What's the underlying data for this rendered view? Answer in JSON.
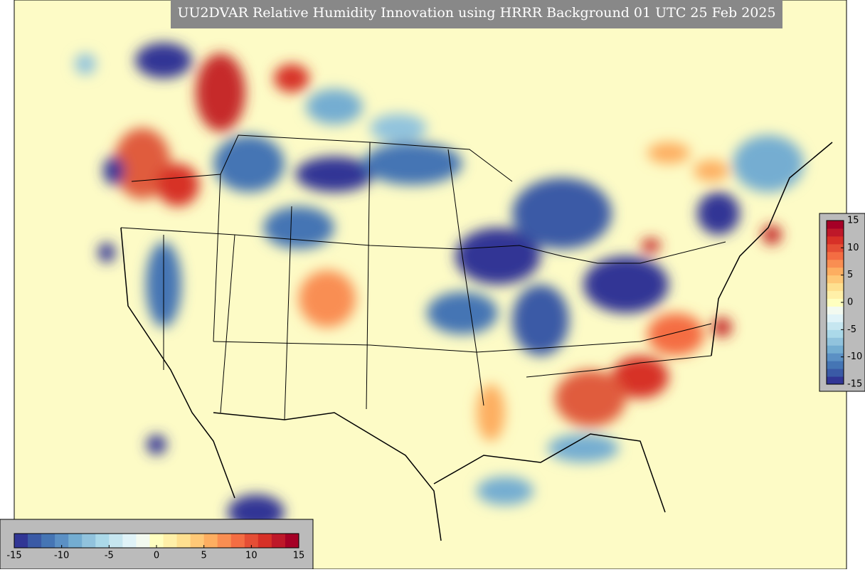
{
  "title": "UU2DVAR Relative Humidity Innovation using HRRR Background 01 UTC 25 Feb 2025",
  "colormap": {
    "lim": [
      -15,
      15
    ],
    "colors": [
      "#313695",
      "#3a5aa6",
      "#4575b4",
      "#5b90c4",
      "#74add1",
      "#91c3dd",
      "#abd9e9",
      "#c6e6f0",
      "#e0f3f8",
      "#f3faf0",
      "#ffffbf",
      "#fff0a8",
      "#fee090",
      "#fec877",
      "#fdae61",
      "#f98e52",
      "#f46d43",
      "#e54e35",
      "#d73027",
      "#be1829",
      "#a50026"
    ]
  },
  "colorbar_horizontal": {
    "ticks": [
      -15,
      -10,
      -5,
      0,
      5,
      10,
      15
    ]
  },
  "colorbar_vertical": {
    "ticks": [
      15,
      10,
      5,
      0,
      -5,
      -10,
      -15
    ]
  }
}
